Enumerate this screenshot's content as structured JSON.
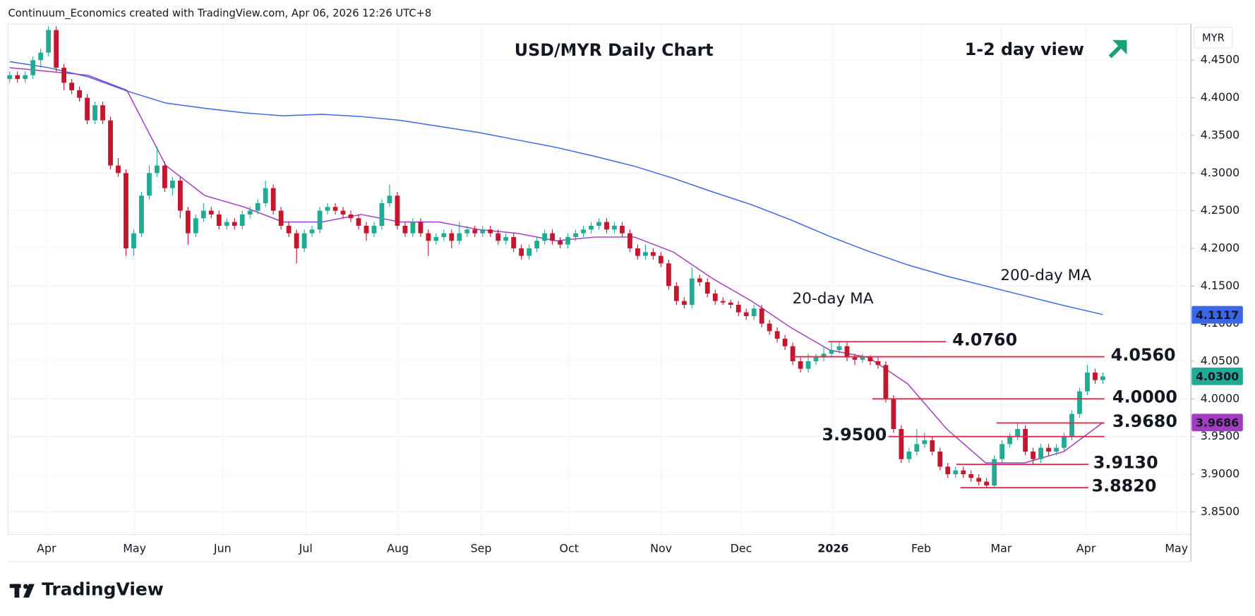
{
  "header": "Continuum_Economics created with TradingView.com, Apr 06, 2026 12:26 UTC+8",
  "footer": "TradingView",
  "chart_data": {
    "type": "candlestick",
    "title": "USD/MYR Daily Chart",
    "subtitle": "1-2 day view",
    "currency": "MYR",
    "up_color": "#22ab94",
    "down_color": "#c2172f",
    "ylim": [
      3.82,
      4.498
    ],
    "yticks": [
      {
        "value": 3.85,
        "label": "3.8500"
      },
      {
        "value": 3.9,
        "label": "3.9000"
      },
      {
        "value": 3.95,
        "label": "3.9500"
      },
      {
        "value": 4.0,
        "label": "4.0000"
      },
      {
        "value": 4.05,
        "label": "4.0500"
      },
      {
        "value": 4.1,
        "label": "4.1000"
      },
      {
        "value": 4.15,
        "label": "4.1500"
      },
      {
        "value": 4.2,
        "label": "4.2000"
      },
      {
        "value": 4.25,
        "label": "4.2500"
      },
      {
        "value": 4.3,
        "label": "4.3000"
      },
      {
        "value": 4.35,
        "label": "4.3500"
      },
      {
        "value": 4.4,
        "label": "4.4000"
      },
      {
        "value": 4.45,
        "label": "4.4500"
      }
    ],
    "grid": true,
    "months": [
      "Apr",
      "May",
      "Jun",
      "Jul",
      "Aug",
      "Sep",
      "Oct",
      "Nov",
      "Dec",
      "2026",
      "Feb",
      "Mar",
      "Apr",
      "May"
    ],
    "candles": [
      [
        4.425,
        4.435,
        4.42,
        4.43
      ],
      [
        4.43,
        4.435,
        4.42,
        4.425
      ],
      [
        4.425,
        4.435,
        4.42,
        4.43
      ],
      [
        4.43,
        4.455,
        4.425,
        4.45
      ],
      [
        4.45,
        4.465,
        4.44,
        4.46
      ],
      [
        4.46,
        4.495,
        4.455,
        4.49
      ],
      [
        4.49,
        4.495,
        4.435,
        4.44
      ],
      [
        4.44,
        4.445,
        4.41,
        4.42
      ],
      [
        4.42,
        4.425,
        4.405,
        4.41
      ],
      [
        4.41,
        4.415,
        4.395,
        4.4
      ],
      [
        4.4,
        4.405,
        4.365,
        4.37
      ],
      [
        4.37,
        4.395,
        4.365,
        4.39
      ],
      [
        4.39,
        4.395,
        4.365,
        4.37
      ],
      [
        4.37,
        4.375,
        4.305,
        4.31
      ],
      [
        4.31,
        4.32,
        4.295,
        4.3
      ],
      [
        4.3,
        4.305,
        4.19,
        4.2
      ],
      [
        4.2,
        4.225,
        4.19,
        4.22
      ],
      [
        4.22,
        4.275,
        4.215,
        4.27
      ],
      [
        4.27,
        4.31,
        4.265,
        4.3
      ],
      [
        4.3,
        4.335,
        4.295,
        4.31
      ],
      [
        4.31,
        4.315,
        4.275,
        4.28
      ],
      [
        4.28,
        4.295,
        4.27,
        4.29
      ],
      [
        4.29,
        4.295,
        4.24,
        4.25
      ],
      [
        4.25,
        4.255,
        4.205,
        4.22
      ],
      [
        4.22,
        4.245,
        4.215,
        4.24
      ],
      [
        4.24,
        4.26,
        4.235,
        4.25
      ],
      [
        4.25,
        4.255,
        4.24,
        4.245
      ],
      [
        4.245,
        4.25,
        4.225,
        4.23
      ],
      [
        4.23,
        4.24,
        4.225,
        4.235
      ],
      [
        4.235,
        4.24,
        4.225,
        4.23
      ],
      [
        4.23,
        4.25,
        4.225,
        4.245
      ],
      [
        4.245,
        4.255,
        4.24,
        4.25
      ],
      [
        4.25,
        4.265,
        4.245,
        4.26
      ],
      [
        4.26,
        4.29,
        4.255,
        4.28
      ],
      [
        4.28,
        4.285,
        4.245,
        4.25
      ],
      [
        4.25,
        4.255,
        4.225,
        4.23
      ],
      [
        4.23,
        4.235,
        4.215,
        4.22
      ],
      [
        4.22,
        4.225,
        4.18,
        4.2
      ],
      [
        4.2,
        4.225,
        4.195,
        4.22
      ],
      [
        4.22,
        4.23,
        4.215,
        4.225
      ],
      [
        4.225,
        4.255,
        4.22,
        4.25
      ],
      [
        4.25,
        4.26,
        4.245,
        4.255
      ],
      [
        4.255,
        4.26,
        4.245,
        4.25
      ],
      [
        4.25,
        4.255,
        4.24,
        4.245
      ],
      [
        4.245,
        4.25,
        4.235,
        4.24
      ],
      [
        4.24,
        4.245,
        4.225,
        4.23
      ],
      [
        4.23,
        4.235,
        4.21,
        4.22
      ],
      [
        4.22,
        4.235,
        4.215,
        4.23
      ],
      [
        4.23,
        4.265,
        4.225,
        4.26
      ],
      [
        4.26,
        4.285,
        4.255,
        4.27
      ],
      [
        4.27,
        4.275,
        4.225,
        4.23
      ],
      [
        4.23,
        4.235,
        4.215,
        4.22
      ],
      [
        4.22,
        4.24,
        4.215,
        4.235
      ],
      [
        4.235,
        4.24,
        4.215,
        4.22
      ],
      [
        4.22,
        4.225,
        4.19,
        4.21
      ],
      [
        4.21,
        4.22,
        4.205,
        4.215
      ],
      [
        4.215,
        4.225,
        4.21,
        4.22
      ],
      [
        4.22,
        4.225,
        4.2,
        4.21
      ],
      [
        4.21,
        4.235,
        4.205,
        4.22
      ],
      [
        4.22,
        4.23,
        4.215,
        4.225
      ],
      [
        4.225,
        4.23,
        4.215,
        4.22
      ],
      [
        4.22,
        4.23,
        4.215,
        4.225
      ],
      [
        4.225,
        4.23,
        4.215,
        4.22
      ],
      [
        4.22,
        4.225,
        4.205,
        4.21
      ],
      [
        4.21,
        4.22,
        4.205,
        4.215
      ],
      [
        4.215,
        4.22,
        4.195,
        4.2
      ],
      [
        4.2,
        4.205,
        4.185,
        4.19
      ],
      [
        4.19,
        4.205,
        4.185,
        4.2
      ],
      [
        4.2,
        4.215,
        4.195,
        4.21
      ],
      [
        4.21,
        4.225,
        4.205,
        4.22
      ],
      [
        4.22,
        4.225,
        4.205,
        4.21
      ],
      [
        4.21,
        4.215,
        4.2,
        4.205
      ],
      [
        4.205,
        4.22,
        4.2,
        4.215
      ],
      [
        4.215,
        4.225,
        4.21,
        4.22
      ],
      [
        4.22,
        4.23,
        4.215,
        4.225
      ],
      [
        4.225,
        4.235,
        4.22,
        4.23
      ],
      [
        4.23,
        4.24,
        4.225,
        4.235
      ],
      [
        4.235,
        4.24,
        4.22,
        4.225
      ],
      [
        4.225,
        4.235,
        4.22,
        4.23
      ],
      [
        4.23,
        4.235,
        4.215,
        4.22
      ],
      [
        4.22,
        4.225,
        4.195,
        4.2
      ],
      [
        4.2,
        4.205,
        4.185,
        4.19
      ],
      [
        4.19,
        4.205,
        4.185,
        4.195
      ],
      [
        4.195,
        4.2,
        4.185,
        4.19
      ],
      [
        4.19,
        4.195,
        4.175,
        4.18
      ],
      [
        4.18,
        4.185,
        4.145,
        4.15
      ],
      [
        4.15,
        4.155,
        4.125,
        4.13
      ],
      [
        4.13,
        4.135,
        4.12,
        4.125
      ],
      [
        4.125,
        4.175,
        4.12,
        4.16
      ],
      [
        4.16,
        4.165,
        4.15,
        4.155
      ],
      [
        4.155,
        4.16,
        4.135,
        4.14
      ],
      [
        4.14,
        4.145,
        4.125,
        4.13
      ],
      [
        4.13,
        4.135,
        4.125,
        4.128
      ],
      [
        4.128,
        4.132,
        4.12,
        4.125
      ],
      [
        4.125,
        4.13,
        4.11,
        4.115
      ],
      [
        4.115,
        4.12,
        4.105,
        4.11
      ],
      [
        4.11,
        4.125,
        4.105,
        4.12
      ],
      [
        4.12,
        4.125,
        4.095,
        4.1
      ],
      [
        4.1,
        4.105,
        4.085,
        4.09
      ],
      [
        4.09,
        4.095,
        4.075,
        4.08
      ],
      [
        4.08,
        4.085,
        4.065,
        4.07
      ],
      [
        4.07,
        4.075,
        4.045,
        4.05
      ],
      [
        4.05,
        4.055,
        4.035,
        4.04
      ],
      [
        4.04,
        4.06,
        4.035,
        4.05
      ],
      [
        4.05,
        4.06,
        4.045,
        4.055
      ],
      [
        4.055,
        4.07,
        4.05,
        4.06
      ],
      [
        4.06,
        4.075,
        4.055,
        4.065
      ],
      [
        4.065,
        4.076,
        4.06,
        4.07
      ],
      [
        4.07,
        4.075,
        4.05,
        4.055
      ],
      [
        4.055,
        4.06,
        4.045,
        4.052
      ],
      [
        4.052,
        4.06,
        4.048,
        4.055
      ],
      [
        4.055,
        4.058,
        4.045,
        4.05
      ],
      [
        4.05,
        4.055,
        4.04,
        4.045
      ],
      [
        4.045,
        4.05,
        3.995,
        4.0
      ],
      [
        4.0,
        4.005,
        3.955,
        3.96
      ],
      [
        3.96,
        3.965,
        3.915,
        3.92
      ],
      [
        3.92,
        3.935,
        3.915,
        3.93
      ],
      [
        3.93,
        3.96,
        3.925,
        3.94
      ],
      [
        3.94,
        3.955,
        3.935,
        3.945
      ],
      [
        3.945,
        3.95,
        3.925,
        3.93
      ],
      [
        3.93,
        3.935,
        3.905,
        3.91
      ],
      [
        3.91,
        3.915,
        3.895,
        3.9
      ],
      [
        3.9,
        3.91,
        3.895,
        3.905
      ],
      [
        3.905,
        3.91,
        3.895,
        3.9
      ],
      [
        3.9,
        3.905,
        3.89,
        3.895
      ],
      [
        3.895,
        3.9,
        3.885,
        3.89
      ],
      [
        3.89,
        3.895,
        3.882,
        3.885
      ],
      [
        3.885,
        3.925,
        3.882,
        3.92
      ],
      [
        3.92,
        3.945,
        3.915,
        3.94
      ],
      [
        3.94,
        3.955,
        3.935,
        3.95
      ],
      [
        3.95,
        3.968,
        3.945,
        3.96
      ],
      [
        3.96,
        3.965,
        3.925,
        3.93
      ],
      [
        3.93,
        3.935,
        3.913,
        3.92
      ],
      [
        3.92,
        3.94,
        3.915,
        3.935
      ],
      [
        3.935,
        3.94,
        3.925,
        3.93
      ],
      [
        3.93,
        3.94,
        3.925,
        3.935
      ],
      [
        3.935,
        3.955,
        3.93,
        3.95
      ],
      [
        3.95,
        3.985,
        3.945,
        3.98
      ],
      [
        3.98,
        4.015,
        3.975,
        4.01
      ],
      [
        4.01,
        4.045,
        4.005,
        4.035
      ],
      [
        4.035,
        4.04,
        4.02,
        4.025
      ],
      [
        4.025,
        4.035,
        4.02,
        4.03
      ]
    ],
    "series": [
      {
        "name": "200-day MA",
        "color": "#3a67e8",
        "values": [
          4.448,
          4.44,
          4.428,
          4.409,
          4.393,
          4.386,
          4.38,
          4.376,
          4.378,
          4.375,
          4.37,
          4.362,
          4.354,
          4.344,
          4.334,
          4.322,
          4.309,
          4.293,
          4.275,
          4.258,
          4.238,
          4.216,
          4.196,
          4.178,
          4.163,
          4.15,
          4.137,
          4.124,
          4.112
        ]
      },
      {
        "name": "20-day MA",
        "color": "#a23cc0",
        "values": [
          4.44,
          4.435,
          4.43,
          4.41,
          4.31,
          4.27,
          4.255,
          4.235,
          4.235,
          4.245,
          4.235,
          4.235,
          4.225,
          4.22,
          4.21,
          4.215,
          4.215,
          4.195,
          4.16,
          4.13,
          4.095,
          4.065,
          4.055,
          4.02,
          3.96,
          3.915,
          3.915,
          3.93,
          3.9686
        ]
      }
    ],
    "levels": [
      {
        "value": 4.076,
        "label": "4.0760"
      },
      {
        "value": 4.056,
        "label": "4.0560"
      },
      {
        "value": 4.0,
        "label": "4.0000"
      },
      {
        "value": 3.968,
        "label": "3.9680"
      },
      {
        "value": 3.95,
        "label": "3.9500"
      },
      {
        "value": 3.913,
        "label": "3.9130"
      },
      {
        "value": 3.882,
        "label": "3.8820"
      }
    ],
    "level_color": "#e0264a",
    "axis_tags": [
      {
        "value": 4.1117,
        "label": "4.1117",
        "color": "#3a67e8"
      },
      {
        "value": 4.03,
        "label": "4.0300",
        "color": "#22ab94"
      },
      {
        "value": 3.9686,
        "label": "3.9686",
        "color": "#a23cc0"
      }
    ]
  }
}
